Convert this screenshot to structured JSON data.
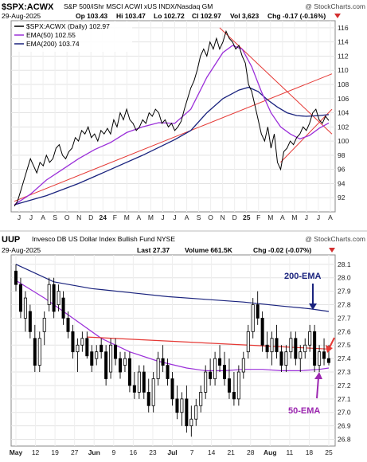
{
  "chart_data": [
    {
      "type": "candlestick",
      "symbol": "$SPX:ACWX",
      "description": "S&P 500/iShr MSCI ACWI xUS INDX/Nasdaq GM",
      "date": "29-Aug-2025",
      "watermark": "@ StockCharts.com",
      "quote": {
        "open": "Op 103.43",
        "high": "Hi 103.47",
        "low": "Lo 102.72",
        "close": "Cl 102.97",
        "volume": "Vol 3,623",
        "change": "Chg -0.17 (-0.16%)"
      },
      "legend": [
        {
          "name": "$SPX:ACWX (Daily) 102.97",
          "color": "#000000"
        },
        {
          "name": "EMA(50) 102.55",
          "color": "#9b30d9"
        },
        {
          "name": "EMA(200) 103.74",
          "color": "#1a237e"
        }
      ],
      "ylim": [
        90,
        117
      ],
      "yticks": [
        92,
        94,
        96,
        98,
        100,
        102,
        104,
        106,
        108,
        110,
        112,
        114,
        116
      ],
      "x_labels": [
        "J",
        "J",
        "A",
        "S",
        "O",
        "N",
        "D",
        "24",
        "F",
        "M",
        "A",
        "M",
        "J",
        "J",
        "A",
        "S",
        "O",
        "N",
        "D",
        "25",
        "F",
        "M",
        "A",
        "M",
        "J",
        "J",
        "A"
      ],
      "price_path": [
        [
          0,
          90.8
        ],
        [
          1,
          91.5
        ],
        [
          2,
          93
        ],
        [
          3,
          94.5
        ],
        [
          4,
          96
        ],
        [
          5,
          97.5
        ],
        [
          6,
          96.5
        ],
        [
          7,
          95.5
        ],
        [
          8,
          97
        ],
        [
          9,
          96.5
        ],
        [
          10,
          98
        ],
        [
          11,
          97
        ],
        [
          12,
          97.5
        ],
        [
          13,
          99
        ],
        [
          14,
          99.5
        ],
        [
          15,
          98
        ],
        [
          16,
          97.5
        ],
        [
          17,
          98.5
        ],
        [
          18,
          99
        ],
        [
          19,
          100.5
        ],
        [
          20,
          100
        ],
        [
          21,
          101.5
        ],
        [
          22,
          101
        ],
        [
          23,
          102
        ],
        [
          24,
          100.5
        ],
        [
          25,
          101
        ],
        [
          26,
          100
        ],
        [
          27,
          101.5
        ],
        [
          28,
          101
        ],
        [
          29,
          101.8
        ],
        [
          30,
          101
        ],
        [
          31,
          103
        ],
        [
          32,
          102
        ],
        [
          33,
          104
        ],
        [
          34,
          103
        ],
        [
          35,
          104.5
        ],
        [
          36,
          103
        ],
        [
          37,
          102.5
        ],
        [
          38,
          101.5
        ],
        [
          39,
          102
        ],
        [
          40,
          103
        ],
        [
          41,
          102.5
        ],
        [
          42,
          104
        ],
        [
          43,
          103.5
        ],
        [
          44,
          104.5
        ],
        [
          45,
          104
        ],
        [
          46,
          102.5
        ],
        [
          47,
          103
        ],
        [
          48,
          102
        ],
        [
          49,
          102.5
        ],
        [
          50,
          101.5
        ],
        [
          51,
          102
        ],
        [
          52,
          102.8
        ],
        [
          53,
          104.5
        ],
        [
          54,
          106
        ],
        [
          55,
          107.5
        ],
        [
          56,
          108.5
        ],
        [
          57,
          110
        ],
        [
          58,
          112
        ],
        [
          59,
          113
        ],
        [
          60,
          112
        ],
        [
          61,
          114
        ],
        [
          62,
          113
        ],
        [
          63,
          114.5
        ],
        [
          64,
          113
        ],
        [
          65,
          114
        ],
        [
          66,
          115.5
        ],
        [
          67,
          114.5
        ],
        [
          68,
          114
        ],
        [
          69,
          113
        ],
        [
          70,
          113.5
        ],
        [
          71,
          112
        ],
        [
          72,
          111
        ],
        [
          73,
          108
        ],
        [
          74,
          107
        ],
        [
          75,
          105
        ],
        [
          76,
          103
        ],
        [
          77,
          101
        ],
        [
          78,
          100
        ],
        [
          79,
          102
        ],
        [
          80,
          99
        ],
        [
          81,
          101
        ],
        [
          82,
          97
        ],
        [
          83,
          96
        ],
        [
          84,
          98.5
        ],
        [
          85,
          99
        ],
        [
          86,
          100
        ],
        [
          87,
          99.5
        ],
        [
          88,
          100.5
        ],
        [
          89,
          101
        ],
        [
          90,
          102
        ],
        [
          91,
          101.5
        ],
        [
          92,
          102.5
        ],
        [
          93,
          104
        ],
        [
          94,
          104.5
        ],
        [
          95,
          103
        ],
        [
          96,
          102.5
        ],
        [
          97,
          103.5
        ],
        [
          98,
          102.9
        ]
      ],
      "ema50_path": [
        [
          0,
          91
        ],
        [
          5,
          92.5
        ],
        [
          10,
          94.5
        ],
        [
          15,
          96
        ],
        [
          20,
          97.5
        ],
        [
          25,
          98.8
        ],
        [
          30,
          99.8
        ],
        [
          35,
          101.2
        ],
        [
          40,
          102
        ],
        [
          45,
          102.6
        ],
        [
          50,
          102.5
        ],
        [
          55,
          104.5
        ],
        [
          60,
          109
        ],
        [
          65,
          112.5
        ],
        [
          68,
          113.5
        ],
        [
          71,
          113
        ],
        [
          74,
          110.5
        ],
        [
          77,
          107
        ],
        [
          80,
          104
        ],
        [
          83,
          102
        ],
        [
          86,
          101
        ],
        [
          89,
          100.3
        ],
        [
          92,
          100.8
        ],
        [
          95,
          101.8
        ],
        [
          98,
          102.55
        ]
      ],
      "ema200_path": [
        [
          0,
          91
        ],
        [
          10,
          92.3
        ],
        [
          20,
          94
        ],
        [
          30,
          96
        ],
        [
          40,
          98
        ],
        [
          50,
          100.2
        ],
        [
          55,
          101.5
        ],
        [
          60,
          104
        ],
        [
          65,
          106
        ],
        [
          70,
          107.2
        ],
        [
          73,
          107.6
        ],
        [
          76,
          107
        ],
        [
          79,
          105.8
        ],
        [
          82,
          104.8
        ],
        [
          85,
          104
        ],
        [
          88,
          103.6
        ],
        [
          91,
          103.5
        ],
        [
          95,
          103.6
        ],
        [
          98,
          103.74
        ]
      ],
      "trendlines": [
        {
          "color": "#e53935",
          "from": [
            0,
            91.5
          ],
          "to": [
            99,
            109.5
          ]
        },
        {
          "color": "#e53935",
          "from": [
            64,
            116
          ],
          "to": [
            99,
            101
          ]
        },
        {
          "color": "#e53935",
          "from": [
            83,
            97
          ],
          "to": [
            99,
            104.5
          ]
        }
      ]
    },
    {
      "type": "candlestick",
      "symbol": "UUP",
      "description": "Invesco DB US Dollar Index Bullish Fund  NYSE",
      "date": "29-Aug-2025",
      "watermark": "@ StockCharts.com",
      "quote": {
        "last": "Last 27.37",
        "volume": "Volume 661.5K",
        "change": "Chg -0.02 (-0.07%)"
      },
      "ylim": [
        26.75,
        28.17
      ],
      "yticks": [
        26.8,
        26.9,
        27.0,
        27.1,
        27.2,
        27.3,
        27.4,
        27.5,
        27.6,
        27.7,
        27.8,
        27.9,
        28.0,
        28.1
      ],
      "x_labels": [
        "May",
        "12",
        "19",
        "27",
        "Jun",
        "9",
        "16",
        "23",
        "Jul",
        "7",
        "14",
        "21",
        "28",
        "Aug",
        "11",
        "18",
        "25"
      ],
      "annotations": [
        {
          "text": "200-EMA",
          "color": "#1a237e"
        },
        {
          "text": "50-EMA",
          "color": "#9c27b0"
        }
      ],
      "candles": [
        {
          "o": 28.05,
          "h": 28.1,
          "l": 27.9,
          "c": 27.95
        },
        {
          "o": 27.95,
          "h": 28.0,
          "l": 27.7,
          "c": 27.75
        },
        {
          "o": 27.7,
          "h": 27.9,
          "l": 27.6,
          "c": 27.85
        },
        {
          "o": 27.75,
          "h": 27.8,
          "l": 27.55,
          "c": 27.6
        },
        {
          "o": 27.55,
          "h": 27.65,
          "l": 27.3,
          "c": 27.35
        },
        {
          "o": 27.35,
          "h": 27.6,
          "l": 27.3,
          "c": 27.55
        },
        {
          "o": 27.6,
          "h": 27.75,
          "l": 27.5,
          "c": 27.7
        },
        {
          "o": 27.8,
          "h": 28.0,
          "l": 27.75,
          "c": 27.95
        },
        {
          "o": 27.95,
          "h": 28.0,
          "l": 27.7,
          "c": 27.75
        },
        {
          "o": 27.8,
          "h": 27.95,
          "l": 27.75,
          "c": 27.9
        },
        {
          "o": 27.85,
          "h": 27.9,
          "l": 27.65,
          "c": 27.7
        },
        {
          "o": 27.7,
          "h": 27.75,
          "l": 27.55,
          "c": 27.6
        },
        {
          "o": 27.6,
          "h": 27.65,
          "l": 27.4,
          "c": 27.45
        },
        {
          "o": 27.45,
          "h": 27.55,
          "l": 27.3,
          "c": 27.5
        },
        {
          "o": 27.5,
          "h": 27.6,
          "l": 27.45,
          "c": 27.55
        },
        {
          "o": 27.55,
          "h": 27.6,
          "l": 27.4,
          "c": 27.42
        },
        {
          "o": 27.45,
          "h": 27.5,
          "l": 27.3,
          "c": 27.35
        },
        {
          "o": 27.4,
          "h": 27.5,
          "l": 27.35,
          "c": 27.45
        },
        {
          "o": 27.5,
          "h": 27.55,
          "l": 27.4,
          "c": 27.45
        },
        {
          "o": 27.45,
          "h": 27.5,
          "l": 27.2,
          "c": 27.25
        },
        {
          "o": 27.3,
          "h": 27.55,
          "l": 27.25,
          "c": 27.5
        },
        {
          "o": 27.5,
          "h": 27.55,
          "l": 27.35,
          "c": 27.4
        },
        {
          "o": 27.4,
          "h": 27.45,
          "l": 27.25,
          "c": 27.3
        },
        {
          "o": 27.35,
          "h": 27.45,
          "l": 27.3,
          "c": 27.4
        },
        {
          "o": 27.4,
          "h": 27.45,
          "l": 27.15,
          "c": 27.2
        },
        {
          "o": 27.2,
          "h": 27.3,
          "l": 27.1,
          "c": 27.15
        },
        {
          "o": 27.15,
          "h": 27.35,
          "l": 27.1,
          "c": 27.3
        },
        {
          "o": 27.3,
          "h": 27.35,
          "l": 27.1,
          "c": 27.15
        },
        {
          "o": 27.15,
          "h": 27.25,
          "l": 27.0,
          "c": 27.05
        },
        {
          "o": 27.05,
          "h": 27.3,
          "l": 27.0,
          "c": 27.25
        },
        {
          "o": 27.25,
          "h": 27.45,
          "l": 27.2,
          "c": 27.4
        },
        {
          "o": 27.4,
          "h": 27.5,
          "l": 27.3,
          "c": 27.35
        },
        {
          "o": 27.35,
          "h": 27.4,
          "l": 27.2,
          "c": 27.25
        },
        {
          "o": 27.25,
          "h": 27.3,
          "l": 27.05,
          "c": 27.1
        },
        {
          "o": 27.1,
          "h": 27.2,
          "l": 26.95,
          "c": 27.0
        },
        {
          "o": 27.0,
          "h": 27.15,
          "l": 26.9,
          "c": 27.1
        },
        {
          "o": 27.1,
          "h": 27.2,
          "l": 26.85,
          "c": 26.9
        },
        {
          "o": 26.9,
          "h": 27.05,
          "l": 26.82,
          "c": 26.95
        },
        {
          "o": 26.95,
          "h": 27.1,
          "l": 26.9,
          "c": 27.05
        },
        {
          "o": 27.05,
          "h": 27.2,
          "l": 27.0,
          "c": 27.15
        },
        {
          "o": 27.15,
          "h": 27.35,
          "l": 27.1,
          "c": 27.3
        },
        {
          "o": 27.3,
          "h": 27.4,
          "l": 27.2,
          "c": 27.25
        },
        {
          "o": 27.25,
          "h": 27.45,
          "l": 27.2,
          "c": 27.4
        },
        {
          "o": 27.4,
          "h": 27.5,
          "l": 27.3,
          "c": 27.35
        },
        {
          "o": 27.35,
          "h": 27.45,
          "l": 27.2,
          "c": 27.25
        },
        {
          "o": 27.25,
          "h": 27.4,
          "l": 27.1,
          "c": 27.15
        },
        {
          "o": 27.15,
          "h": 27.3,
          "l": 27.05,
          "c": 27.1
        },
        {
          "o": 27.1,
          "h": 27.35,
          "l": 27.05,
          "c": 27.3
        },
        {
          "o": 27.3,
          "h": 27.45,
          "l": 27.25,
          "c": 27.4
        },
        {
          "o": 27.45,
          "h": 27.65,
          "l": 27.4,
          "c": 27.6
        },
        {
          "o": 27.6,
          "h": 27.85,
          "l": 27.55,
          "c": 27.8
        },
        {
          "o": 27.8,
          "h": 27.9,
          "l": 27.65,
          "c": 27.7
        },
        {
          "o": 27.7,
          "h": 27.75,
          "l": 27.45,
          "c": 27.5
        },
        {
          "o": 27.5,
          "h": 27.6,
          "l": 27.4,
          "c": 27.45
        },
        {
          "o": 27.45,
          "h": 27.6,
          "l": 27.35,
          "c": 27.55
        },
        {
          "o": 27.55,
          "h": 27.65,
          "l": 27.4,
          "c": 27.45
        },
        {
          "o": 27.45,
          "h": 27.5,
          "l": 27.3,
          "c": 27.35
        },
        {
          "o": 27.35,
          "h": 27.5,
          "l": 27.3,
          "c": 27.45
        },
        {
          "o": 27.45,
          "h": 27.6,
          "l": 27.4,
          "c": 27.55
        },
        {
          "o": 27.55,
          "h": 27.6,
          "l": 27.35,
          "c": 27.4
        },
        {
          "o": 27.4,
          "h": 27.5,
          "l": 27.3,
          "c": 27.45
        },
        {
          "o": 27.45,
          "h": 27.55,
          "l": 27.4,
          "c": 27.5
        },
        {
          "o": 27.5,
          "h": 27.65,
          "l": 27.45,
          "c": 27.6
        },
        {
          "o": 27.6,
          "h": 27.65,
          "l": 27.3,
          "c": 27.35
        },
        {
          "o": 27.35,
          "h": 27.5,
          "l": 27.3,
          "c": 27.45
        },
        {
          "o": 27.45,
          "h": 27.55,
          "l": 27.35,
          "c": 27.4
        },
        {
          "o": 27.4,
          "h": 27.5,
          "l": 27.35,
          "c": 27.37
        }
      ],
      "ema200_path": [
        [
          0,
          28.1
        ],
        [
          8,
          27.97
        ],
        [
          16,
          27.92
        ],
        [
          24,
          27.89
        ],
        [
          32,
          27.86
        ],
        [
          40,
          27.84
        ],
        [
          48,
          27.82
        ],
        [
          56,
          27.79
        ],
        [
          62,
          27.77
        ],
        [
          66,
          27.75
        ]
      ],
      "ema50_path": [
        [
          0,
          27.98
        ],
        [
          6,
          27.85
        ],
        [
          12,
          27.7
        ],
        [
          18,
          27.55
        ],
        [
          24,
          27.45
        ],
        [
          30,
          27.38
        ],
        [
          36,
          27.33
        ],
        [
          40,
          27.31
        ],
        [
          44,
          27.31
        ],
        [
          48,
          27.32
        ],
        [
          52,
          27.32
        ],
        [
          56,
          27.31
        ],
        [
          60,
          27.31
        ],
        [
          64,
          27.32
        ],
        [
          66,
          27.33
        ]
      ],
      "trendlines": [
        {
          "color": "#e53935",
          "from": [
            15,
            27.56
          ],
          "to": [
            66,
            27.47
          ]
        }
      ]
    }
  ]
}
